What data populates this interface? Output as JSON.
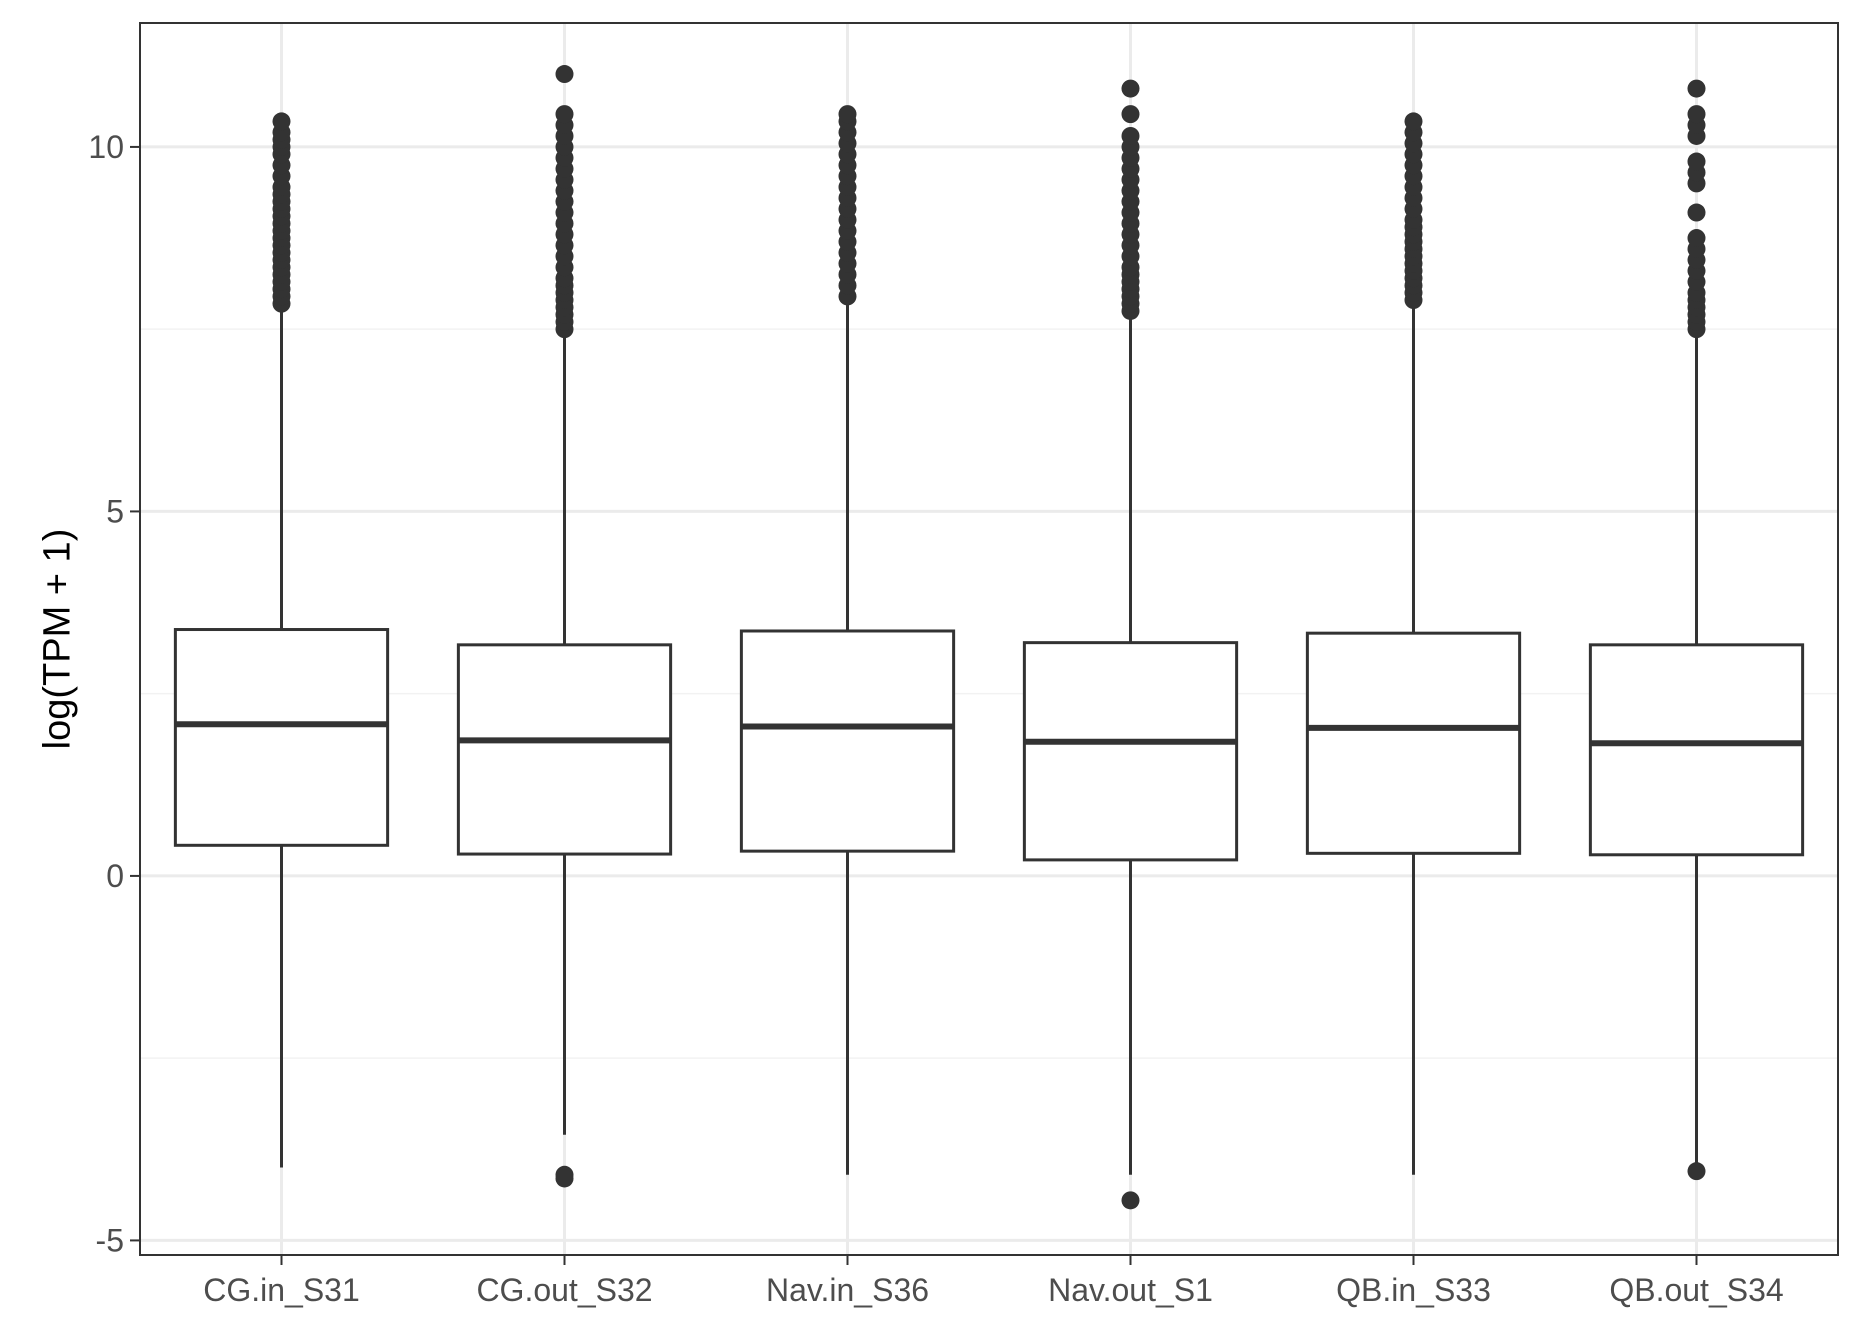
{
  "chart_data": {
    "type": "boxplot",
    "title": "",
    "xlabel": "",
    "ylabel": "log(TPM + 1)",
    "ylim": [
      -5.2,
      11.7
    ],
    "yticks": [
      -5,
      0,
      5,
      10
    ],
    "ytick_labels": [
      "-5",
      "0",
      "5",
      "10"
    ],
    "grid": true,
    "categories": [
      "CG.in_S31",
      "CG.out_S32",
      "Nav.in_S36",
      "Nav.out_S1",
      "QB.in_S33",
      "QB.out_S34"
    ],
    "boxes": [
      {
        "category": "CG.in_S31",
        "whisker_low": -4.0,
        "q1": 0.42,
        "median": 2.08,
        "q3": 3.38,
        "whisker_high": 7.8,
        "outliers": [
          7.85,
          7.95,
          8.05,
          8.15,
          8.25,
          8.35,
          8.45,
          8.55,
          8.65,
          8.75,
          8.85,
          8.95,
          9.05,
          9.15,
          9.25,
          9.35,
          9.45,
          9.6,
          9.75,
          9.9,
          10.0,
          10.1,
          10.2,
          10.35
        ]
      },
      {
        "category": "CG.out_S32",
        "whisker_low": -3.55,
        "q1": 0.3,
        "median": 1.86,
        "q3": 3.17,
        "whisker_high": 7.45,
        "outliers": [
          -4.1,
          -4.15,
          7.5,
          7.6,
          7.7,
          7.8,
          7.9,
          8.0,
          8.1,
          8.2,
          8.35,
          8.5,
          8.65,
          8.8,
          8.95,
          9.1,
          9.25,
          9.4,
          9.55,
          9.7,
          9.85,
          10.0,
          10.15,
          10.3,
          10.45,
          11.0
        ]
      },
      {
        "category": "Nav.in_S36",
        "whisker_low": -4.1,
        "q1": 0.34,
        "median": 2.05,
        "q3": 3.36,
        "whisker_high": 7.95,
        "outliers": [
          7.95,
          8.1,
          8.25,
          8.4,
          8.55,
          8.7,
          8.85,
          9.0,
          9.15,
          9.3,
          9.45,
          9.6,
          9.75,
          9.9,
          10.05,
          10.2,
          10.35,
          10.45
        ]
      },
      {
        "category": "Nav.out_S1",
        "whisker_low": -4.1,
        "q1": 0.22,
        "median": 1.84,
        "q3": 3.2,
        "whisker_high": 7.7,
        "outliers": [
          -4.45,
          7.75,
          7.85,
          7.95,
          8.05,
          8.15,
          8.25,
          8.35,
          8.5,
          8.65,
          8.8,
          8.95,
          9.1,
          9.25,
          9.4,
          9.55,
          9.7,
          9.85,
          10.0,
          10.15,
          10.45,
          10.8
        ]
      },
      {
        "category": "QB.in_S33",
        "whisker_low": -4.1,
        "q1": 0.31,
        "median": 2.03,
        "q3": 3.33,
        "whisker_high": 7.85,
        "outliers": [
          7.9,
          8.0,
          8.1,
          8.2,
          8.3,
          8.4,
          8.5,
          8.6,
          8.7,
          8.8,
          8.9,
          9.0,
          9.15,
          9.3,
          9.45,
          9.6,
          9.75,
          9.9,
          10.05,
          10.2,
          10.35
        ]
      },
      {
        "category": "QB.out_S34",
        "whisker_low": -4.05,
        "q1": 0.29,
        "median": 1.82,
        "q3": 3.17,
        "whisker_high": 7.45,
        "outliers": [
          -4.05,
          7.5,
          7.6,
          7.7,
          7.8,
          7.9,
          8.0,
          8.15,
          8.3,
          8.45,
          8.6,
          8.75,
          9.1,
          9.5,
          9.65,
          9.8,
          10.15,
          10.3,
          10.45,
          10.8
        ]
      }
    ],
    "colors": {
      "box_stroke": "#333333",
      "box_fill": "#ffffff",
      "outlier": "#333333",
      "grid_major": "#ebebeb",
      "grid_minor": "#f2f2f2",
      "panel_border": "#333333",
      "tick_text": "#4d4d4d",
      "title_text": "#000000"
    }
  }
}
